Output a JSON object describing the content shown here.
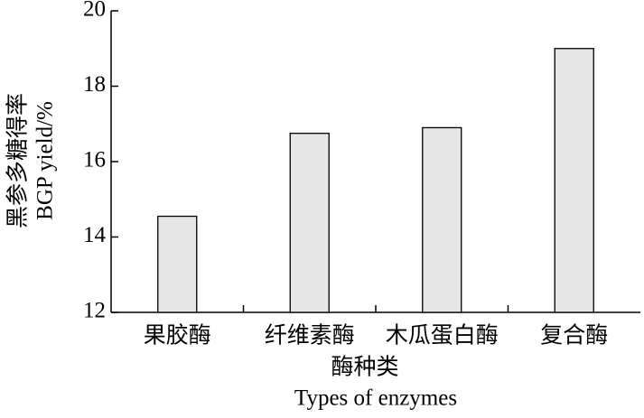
{
  "chart_data": {
    "type": "bar",
    "categories": [
      "果胶酶",
      "纤维素酶",
      "木瓜蛋白酶",
      "复合酶"
    ],
    "values": [
      14.55,
      16.75,
      16.9,
      19.0
    ],
    "color": "#e6e6e6",
    "x_label": [
      "酶种类",
      "Types of enzymes"
    ],
    "y_label": [
      "黑参多糖得率",
      "BGP yield/%"
    ],
    "ylim": [
      12,
      20
    ],
    "yticks": [
      12,
      14,
      16,
      18,
      20
    ]
  }
}
